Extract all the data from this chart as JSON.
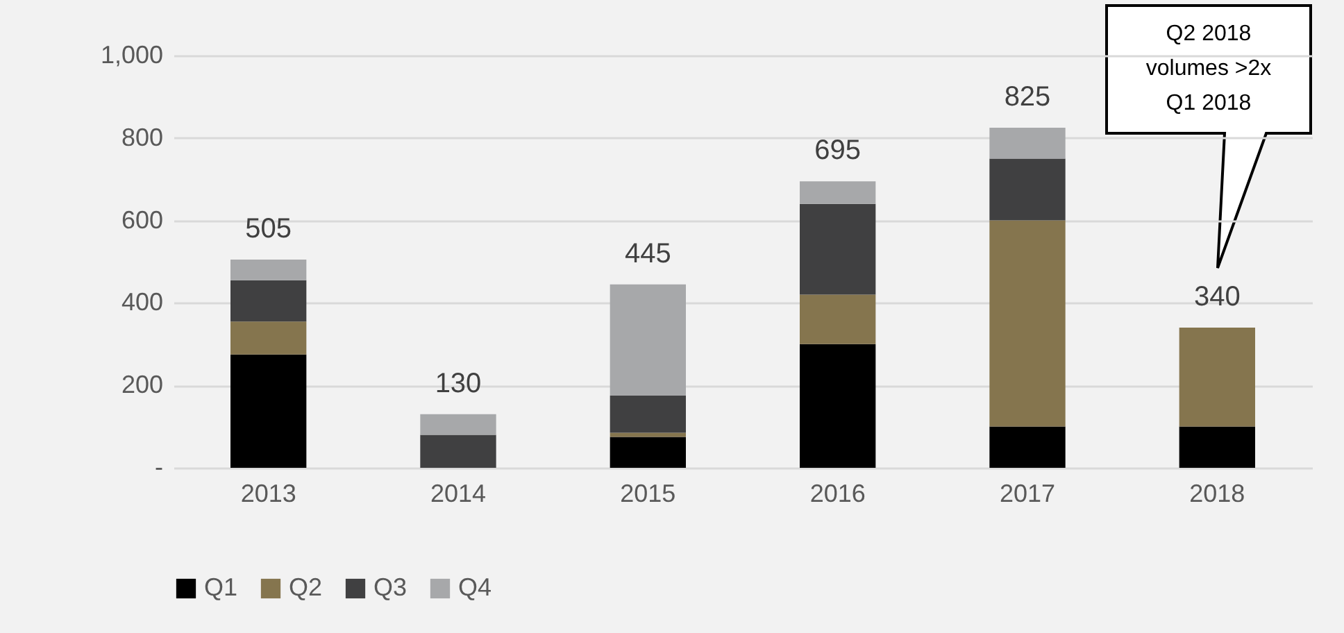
{
  "chart_data": {
    "type": "bar",
    "stacked": true,
    "categories": [
      "2013",
      "2014",
      "2015",
      "2016",
      "2017",
      "2018"
    ],
    "series": [
      {
        "name": "Q1",
        "color": "#000000",
        "values": [
          275,
          0,
          75,
          300,
          100,
          100
        ]
      },
      {
        "name": "Q2",
        "color": "#85754e",
        "values": [
          80,
          0,
          10,
          120,
          500,
          240
        ]
      },
      {
        "name": "Q3",
        "color": "#404041",
        "values": [
          100,
          80,
          90,
          220,
          150,
          null
        ]
      },
      {
        "name": "Q4",
        "color": "#a7a8aa",
        "values": [
          50,
          50,
          270,
          55,
          75,
          null
        ]
      }
    ],
    "totals": [
      "505",
      "130",
      "445",
      "695",
      "825",
      "340"
    ],
    "ylim": [
      0,
      1000
    ],
    "yticks": [
      {
        "value": 0,
        "label": "-"
      },
      200,
      400,
      600,
      800,
      {
        "value": 1000,
        "label": "1,000"
      }
    ],
    "grid": "y",
    "legend": "bottom",
    "annotations": [
      "Q2 2018\nvolumes >2x\nQ1 2018"
    ]
  }
}
